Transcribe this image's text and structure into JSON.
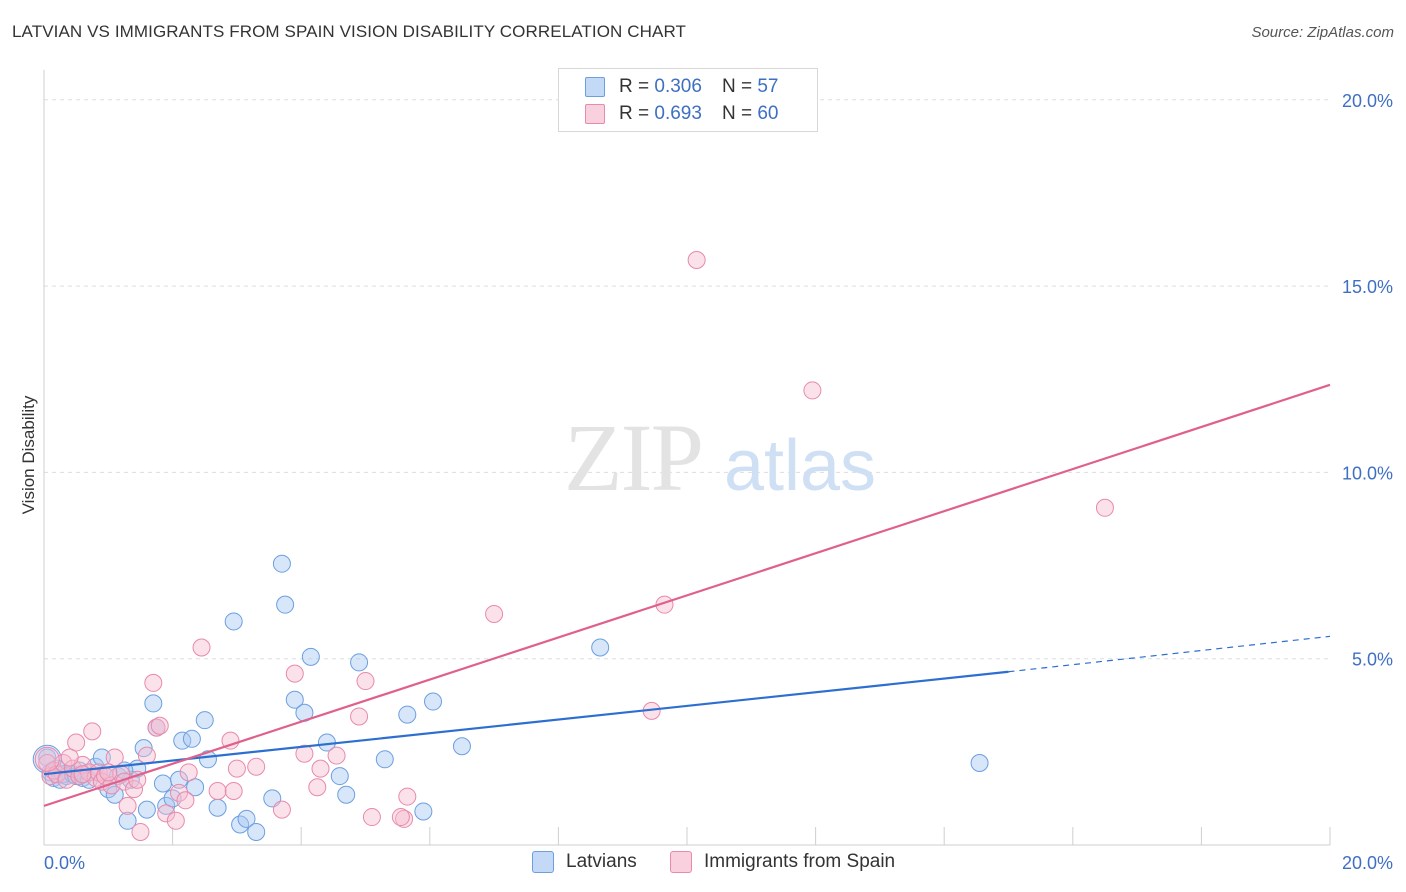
{
  "title": "LATVIAN VS IMMIGRANTS FROM SPAIN VISION DISABILITY CORRELATION CHART",
  "source": "Source: ZipAtlas.com",
  "watermark": {
    "zip": "ZIP",
    "atlas": "atlas"
  },
  "legend_top": [
    {
      "r_label": "R =",
      "r_value": "0.306",
      "n_label": "N =",
      "n_value": "57"
    },
    {
      "r_label": "R =",
      "r_value": "0.693",
      "n_label": "N =",
      "n_value": "60"
    }
  ],
  "colors": {
    "latvians_fill": "#a7c7f2",
    "latvians_stroke": "#6b9fe0",
    "latvians_line": "#2d6fd0",
    "spain_fill": "#f6bcd0",
    "spain_stroke": "#e88aab",
    "spain_line": "#e0608c",
    "tick_label": "#3e6fc2",
    "grid": "#dddddd"
  },
  "chart_data": {
    "type": "scatter",
    "title": "LATVIAN VS IMMIGRANTS FROM SPAIN VISION DISABILITY CORRELATION CHART",
    "xlabel": "",
    "ylabel": "Vision Disability",
    "xlim": [
      0,
      20
    ],
    "ylim": [
      0,
      20.8
    ],
    "x_tick_labels": [
      "0.0%",
      "20.0%"
    ],
    "y_ticks": [
      5,
      10,
      15,
      20
    ],
    "y_tick_labels": [
      "5.0%",
      "10.0%",
      "15.0%",
      "20.0%"
    ],
    "grid": true,
    "legend_placement": "bottom",
    "series": [
      {
        "name": "Latvians",
        "r": 0.306,
        "n": 57,
        "trend": {
          "x0": 0,
          "y0": 1.9,
          "x1": 15,
          "y1": 4.65,
          "dashed_to_x": 20,
          "dashed_to_y": 5.6
        },
        "points": [
          [
            0.05,
            2.35
          ],
          [
            0.1,
            1.95
          ],
          [
            0.15,
            1.8
          ],
          [
            0.2,
            2.05
          ],
          [
            0.25,
            1.75
          ],
          [
            0.3,
            1.9
          ],
          [
            0.35,
            1.85
          ],
          [
            0.45,
            1.9
          ],
          [
            0.5,
            1.85
          ],
          [
            0.55,
            2.0
          ],
          [
            0.6,
            1.8
          ],
          [
            0.7,
            1.75
          ],
          [
            0.8,
            2.1
          ],
          [
            0.9,
            2.35
          ],
          [
            0.95,
            1.85
          ],
          [
            1.0,
            1.5
          ],
          [
            1.1,
            1.35
          ],
          [
            1.15,
            1.85
          ],
          [
            1.3,
            0.65
          ],
          [
            1.35,
            1.75
          ],
          [
            1.45,
            2.05
          ],
          [
            1.55,
            2.6
          ],
          [
            1.6,
            0.95
          ],
          [
            1.7,
            3.8
          ],
          [
            1.75,
            3.15
          ],
          [
            1.85,
            1.65
          ],
          [
            1.9,
            1.05
          ],
          [
            2.0,
            1.25
          ],
          [
            2.1,
            1.75
          ],
          [
            2.15,
            2.8
          ],
          [
            2.3,
            2.85
          ],
          [
            2.35,
            1.55
          ],
          [
            2.5,
            3.35
          ],
          [
            2.55,
            2.3
          ],
          [
            2.7,
            1.0
          ],
          [
            2.95,
            6.0
          ],
          [
            3.05,
            0.55
          ],
          [
            3.15,
            0.7
          ],
          [
            3.3,
            0.35
          ],
          [
            3.55,
            1.25
          ],
          [
            3.7,
            7.55
          ],
          [
            3.75,
            6.45
          ],
          [
            3.9,
            3.9
          ],
          [
            4.05,
            3.55
          ],
          [
            4.15,
            5.05
          ],
          [
            4.4,
            2.75
          ],
          [
            4.6,
            1.85
          ],
          [
            4.7,
            1.35
          ],
          [
            4.9,
            4.9
          ],
          [
            5.3,
            2.3
          ],
          [
            5.65,
            3.5
          ],
          [
            5.9,
            0.9
          ],
          [
            6.05,
            3.85
          ],
          [
            6.5,
            2.65
          ],
          [
            8.65,
            5.3
          ],
          [
            14.55,
            2.2
          ],
          [
            1.25,
            2.0
          ]
        ]
      },
      {
        "name": "Immigrants from Spain",
        "r": 0.693,
        "n": 60,
        "trend": {
          "x0": 0,
          "y0": 1.05,
          "x1": 20,
          "y1": 12.35
        },
        "points": [
          [
            0.05,
            2.2
          ],
          [
            0.1,
            1.85
          ],
          [
            0.15,
            2.0
          ],
          [
            0.2,
            1.9
          ],
          [
            0.3,
            2.2
          ],
          [
            0.35,
            1.75
          ],
          [
            0.45,
            2.05
          ],
          [
            0.5,
            2.75
          ],
          [
            0.55,
            1.85
          ],
          [
            0.6,
            2.15
          ],
          [
            0.7,
            1.95
          ],
          [
            0.75,
            3.05
          ],
          [
            0.8,
            1.8
          ],
          [
            0.85,
            1.95
          ],
          [
            0.9,
            1.7
          ],
          [
            0.95,
            1.85
          ],
          [
            1.05,
            1.6
          ],
          [
            1.1,
            2.35
          ],
          [
            1.2,
            1.9
          ],
          [
            1.25,
            1.7
          ],
          [
            1.3,
            1.05
          ],
          [
            1.4,
            1.5
          ],
          [
            1.45,
            1.75
          ],
          [
            1.5,
            0.35
          ],
          [
            1.6,
            2.4
          ],
          [
            1.7,
            4.35
          ],
          [
            1.75,
            3.15
          ],
          [
            1.8,
            3.2
          ],
          [
            1.9,
            0.85
          ],
          [
            2.05,
            0.65
          ],
          [
            2.1,
            1.4
          ],
          [
            2.2,
            1.2
          ],
          [
            2.25,
            1.95
          ],
          [
            2.45,
            5.3
          ],
          [
            2.7,
            1.45
          ],
          [
            2.9,
            2.8
          ],
          [
            2.95,
            1.45
          ],
          [
            3.0,
            2.05
          ],
          [
            3.3,
            2.1
          ],
          [
            3.7,
            0.95
          ],
          [
            3.9,
            4.6
          ],
          [
            4.05,
            2.45
          ],
          [
            4.25,
            1.55
          ],
          [
            4.3,
            2.05
          ],
          [
            4.55,
            2.4
          ],
          [
            4.9,
            3.45
          ],
          [
            5.0,
            4.4
          ],
          [
            5.1,
            0.75
          ],
          [
            5.6,
            0.7
          ],
          [
            5.55,
            0.75
          ],
          [
            5.65,
            1.3
          ],
          [
            7.0,
            6.2
          ],
          [
            9.45,
            3.6
          ],
          [
            9.65,
            6.45
          ],
          [
            10.15,
            15.7
          ],
          [
            11.95,
            12.2
          ],
          [
            16.5,
            9.05
          ],
          [
            0.6,
            1.9
          ],
          [
            1.0,
            1.95
          ],
          [
            0.4,
            2.35
          ]
        ]
      }
    ]
  },
  "legend_bottom": [
    "Latvians",
    "Immigrants from Spain"
  ]
}
